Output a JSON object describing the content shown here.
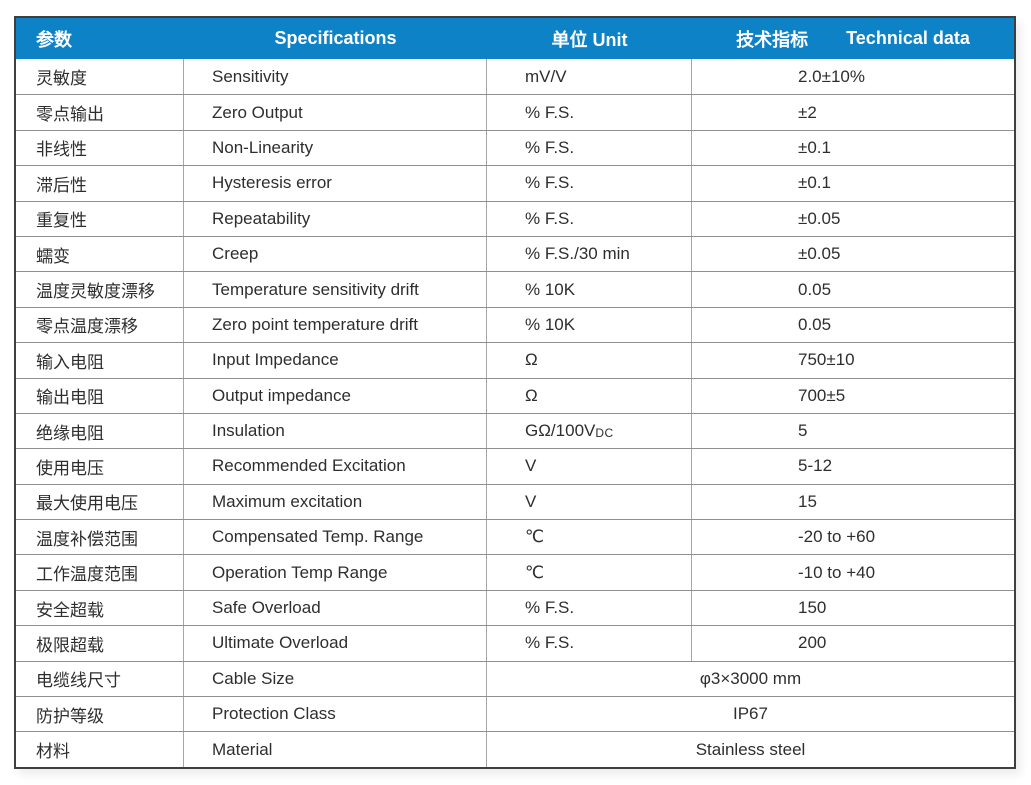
{
  "colors": {
    "header_bg": "#0d82c6",
    "header_text": "#ffffff",
    "body_text": "#2e2e2e",
    "outer_border": "#3f3f3f",
    "inner_border": "#8f8f8f"
  },
  "header": {
    "param_zh": "参数",
    "specifications": "Specifications",
    "unit": "单位 Unit",
    "technical_zh": "技术指标",
    "technical_en": "Technical data"
  },
  "rows": [
    {
      "param_zh": "灵敏度",
      "spec_en": "Sensitivity",
      "unit": "mV/V",
      "value": "2.0±10%"
    },
    {
      "param_zh": "零点输出",
      "spec_en": "Zero Output",
      "unit": "% F.S.",
      "value": "±2"
    },
    {
      "param_zh": "非线性",
      "spec_en": "Non-Linearity",
      "unit": "% F.S.",
      "value": "±0.1"
    },
    {
      "param_zh": "滞后性",
      "spec_en": "Hysteresis error",
      "unit": "% F.S.",
      "value": "±0.1"
    },
    {
      "param_zh": "重复性",
      "spec_en": "Repeatability",
      "unit": "% F.S.",
      "value": "±0.05"
    },
    {
      "param_zh": "蠕变",
      "spec_en": "Creep",
      "unit": "% F.S./30 min",
      "value": "±0.05"
    },
    {
      "param_zh": "温度灵敏度漂移",
      "spec_en": "Temperature sensitivity drift",
      "unit": "% 10K",
      "value": "0.05"
    },
    {
      "param_zh": "零点温度漂移",
      "spec_en": "Zero point temperature drift",
      "unit": "% 10K",
      "value": "0.05"
    },
    {
      "param_zh": "输入电阻",
      "spec_en": "Input Impedance",
      "unit": "Ω",
      "value": "750±10"
    },
    {
      "param_zh": "输出电阻",
      "spec_en": "Output impedance",
      "unit": "Ω",
      "value": "700±5"
    },
    {
      "param_zh": "绝缘电阻",
      "spec_en": "Insulation",
      "unit": "GΩ/100V",
      "unit_small": "DC",
      "value": "5"
    },
    {
      "param_zh": "使用电压",
      "spec_en": "Recommended Excitation",
      "unit": "V",
      "value": "5-12"
    },
    {
      "param_zh": "最大使用电压",
      "spec_en": "Maximum excitation",
      "unit": "V",
      "value": "15"
    },
    {
      "param_zh": "温度补偿范围",
      "spec_en": "Compensated Temp. Range",
      "unit": "℃",
      "value": "-20 to +60"
    },
    {
      "param_zh": "工作温度范围",
      "spec_en": "Operation Temp Range",
      "unit": "℃",
      "value": "-10 to +40"
    },
    {
      "param_zh": "安全超载",
      "spec_en": "Safe Overload",
      "unit": "% F.S.",
      "value": "150"
    },
    {
      "param_zh": "极限超载",
      "spec_en": "Ultimate Overload",
      "unit": "% F.S.",
      "value": "200"
    },
    {
      "param_zh": "电缆线尺寸",
      "spec_en": "Cable Size",
      "merged_value": "φ3×3000 mm"
    },
    {
      "param_zh": "防护等级",
      "spec_en": "Protection Class",
      "merged_value": "IP67"
    },
    {
      "param_zh": "材料",
      "spec_en": "Material",
      "merged_value": "Stainless steel"
    }
  ]
}
